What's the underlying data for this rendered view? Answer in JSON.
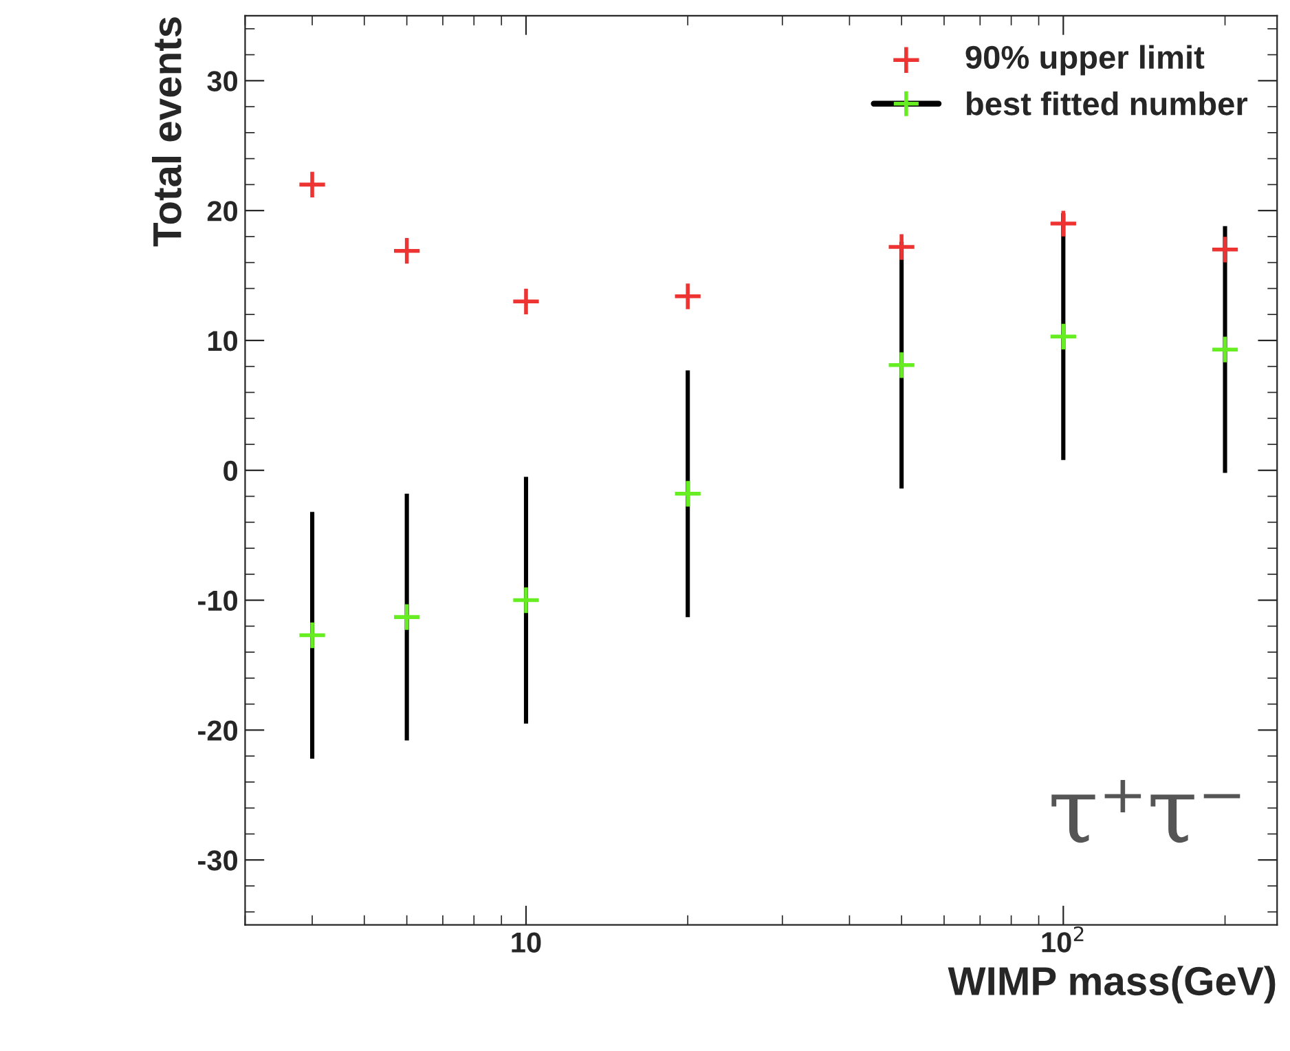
{
  "chart_data": {
    "type": "scatter",
    "xlabel": "WIMP mass(GeV)",
    "ylabel": "Total events",
    "log": "x",
    "grid": false,
    "legend": "top right",
    "marker": "cross",
    "x": [
      4,
      6,
      10,
      20,
      50,
      100,
      200
    ],
    "series": [
      {
        "name": "90% upper limit",
        "color": "#ee3333",
        "values": [
          22,
          16.9,
          13,
          13.4,
          17.2,
          19,
          17
        ]
      },
      {
        "name": "best fitted number",
        "color": "#66ee22",
        "values": [
          -12.7,
          -11.3,
          -10,
          -1.8,
          8.1,
          10.3,
          9.3
        ],
        "errors": [
          9.5,
          9.5,
          9.5,
          9.5,
          9.5,
          9.5,
          9.5
        ]
      }
    ],
    "xlim": [
      3,
      250
    ],
    "ylim": [
      -35,
      35
    ],
    "xticks": [
      10,
      {
        "value": 100,
        "label": "10$^{2}$"
      }
    ],
    "yticks": [
      -30,
      -20,
      -10,
      0,
      10,
      20,
      30
    ],
    "annotations": [
      "τ⁺τ⁻"
    ]
  }
}
